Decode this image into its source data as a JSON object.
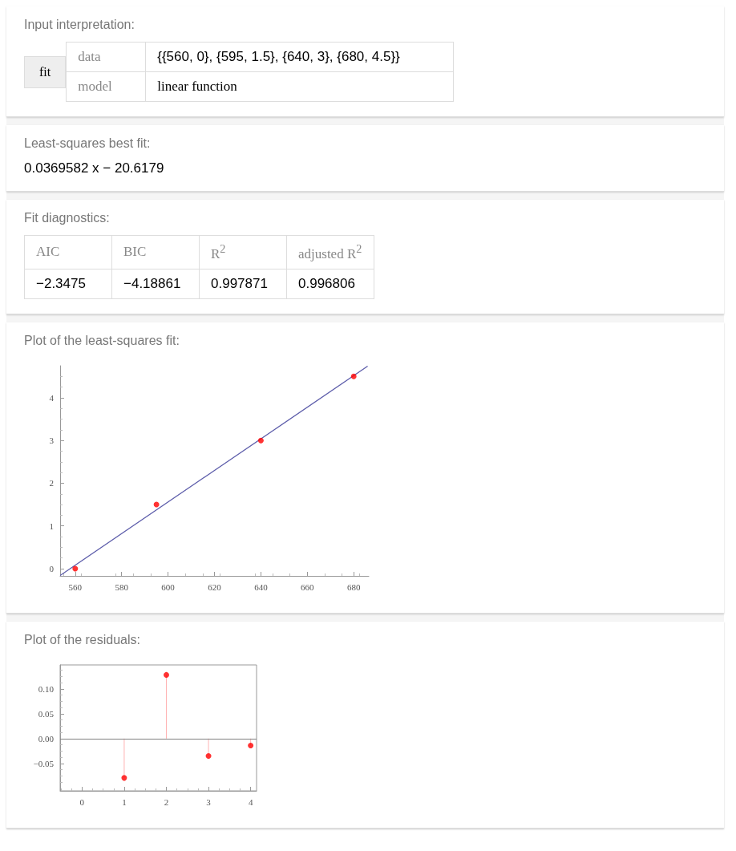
{
  "chart_data": [
    {
      "type": "other",
      "title": "Input interpretation:",
      "annotations": [
        "fit",
        "data",
        "{{560, 0}, {595, 1.5}, {640, 3}, {680, 4.5}}",
        "model",
        "linear function"
      ]
    },
    {
      "type": "other",
      "title": "Least-squares best fit:",
      "annotations": [
        "0.0369582 x − 20.6179"
      ]
    },
    {
      "type": "other",
      "title": "Fit diagnostics:",
      "annotations": [
        "AIC",
        "BIC",
        "R$^{2}$",
        "adjusted R$^{2}$",
        "−2.3475",
        "−4.18861",
        "0.997871",
        "0.996806"
      ]
    },
    {
      "type": "scatter",
      "title": "Plot of the least-squares fit:",
      "xlim": [
        553.5,
        686.5
      ],
      "ylim": [
        -0.17,
        4.75
      ],
      "xticks": [
        560,
        580,
        600,
        620,
        640,
        660,
        680
      ],
      "yticks": [
        0,
        1,
        2,
        3,
        4
      ],
      "series": [
        {
          "type": "scatter",
          "marker": "circle",
          "color": "#ff0000",
          "x": [
            560,
            595,
            640,
            680
          ],
          "values": [
            0,
            1.5,
            3,
            4.5
          ]
        },
        {
          "type": "line",
          "color": "#5c5caa",
          "x": [
            553.5,
            686
          ],
          "values": [
            -0.16,
            4.74
          ]
        }
      ]
    },
    {
      "type": "lollipop",
      "title": "Plot of the residuals:",
      "marker": "circle",
      "color": "#ff0000",
      "x": [
        1,
        2,
        3,
        4
      ],
      "values": [
        -0.079,
        0.128,
        -0.035,
        -0.014
      ],
      "xlim": [
        -0.52,
        4.14
      ],
      "ylim": [
        -0.105,
        0.148
      ],
      "xticks": [
        0,
        1,
        2,
        3,
        4
      ],
      "yticks": [
        {
          "value": -0.05,
          "label": "−0.05"
        },
        {
          "value": 0,
          "label": "0.00"
        },
        {
          "value": 0.05,
          "label": "0.05"
        },
        {
          "value": 0.1,
          "label": "0.10"
        }
      ],
      "ref_lines": [
        {
          "axis": "y",
          "value": 0,
          "color": "#808080"
        }
      ]
    }
  ]
}
